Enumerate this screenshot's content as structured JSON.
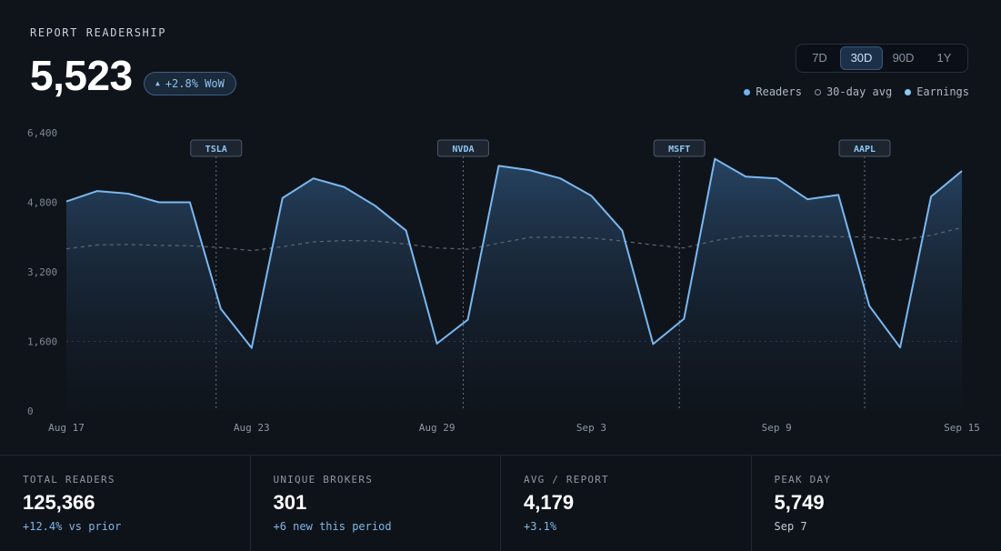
{
  "header": {
    "title": "REPORT READERSHIP",
    "value": "5,523",
    "wow_badge": "+2.8% WoW"
  },
  "range_selector": {
    "options": [
      "7D",
      "30D",
      "90D",
      "1Y"
    ],
    "selected": "30D"
  },
  "legend": [
    {
      "label": "Readers",
      "color": "#6fb3f0",
      "style": "dot"
    },
    {
      "label": "30-day avg",
      "color": "#8b94a0",
      "style": "ring"
    },
    {
      "label": "Earnings",
      "color": "#8cc8f5",
      "style": "dot"
    }
  ],
  "chart_data": {
    "type": "area",
    "ylim": [
      0,
      6400
    ],
    "yticks": [
      "0",
      "1,600",
      "3,200",
      "4,800",
      "6,400"
    ],
    "ytick_values": [
      0,
      1600,
      3200,
      4800,
      6400
    ],
    "xtick_labels": [
      "Aug 17",
      "Aug 23",
      "Aug 29",
      "Sep 3",
      "Sep 9",
      "Sep 15"
    ],
    "xtick_index": [
      0,
      6,
      12,
      17,
      23,
      29
    ],
    "series": [
      {
        "name": "Readers",
        "color": "#7ab8ef",
        "values": [
          4820,
          5060,
          5000,
          4800,
          4800,
          2350,
          1450,
          4900,
          5350,
          5150,
          4720,
          4150,
          1550,
          2100,
          5640,
          5540,
          5350,
          4950,
          4150,
          1540,
          2120,
          5800,
          5390,
          5350,
          4870,
          4970,
          2420,
          1460,
          4930,
          5520
        ]
      },
      {
        "name": "30-day avg",
        "color": "#6b7380",
        "values": [
          3730,
          3820,
          3830,
          3810,
          3800,
          3760,
          3690,
          3780,
          3890,
          3920,
          3910,
          3840,
          3750,
          3720,
          3860,
          3990,
          4000,
          3980,
          3910,
          3820,
          3750,
          3920,
          4020,
          4030,
          4020,
          4010,
          4000,
          3930,
          4040,
          4220
        ]
      }
    ],
    "events": [
      {
        "label": "TSLA",
        "index": 5
      },
      {
        "label": "NVDA",
        "index": 13
      },
      {
        "label": "MSFT",
        "index": 20
      },
      {
        "label": "AAPL",
        "index": 26
      }
    ],
    "event_color": "#8cc8f5",
    "reference_line": 1600
  },
  "stats": [
    {
      "label": "TOTAL READERS",
      "value": "125,366",
      "sub": "+12.4% vs prior",
      "sub_style": "blue"
    },
    {
      "label": "UNIQUE BROKERS",
      "value": "301",
      "sub": "+6 new this period",
      "sub_style": "blue"
    },
    {
      "label": "AVG / REPORT",
      "value": "4,179",
      "sub": "+3.1%",
      "sub_style": "blue"
    },
    {
      "label": "PEAK DAY",
      "value": "5,749",
      "sub": "Sep 7",
      "sub_style": "grey"
    }
  ]
}
